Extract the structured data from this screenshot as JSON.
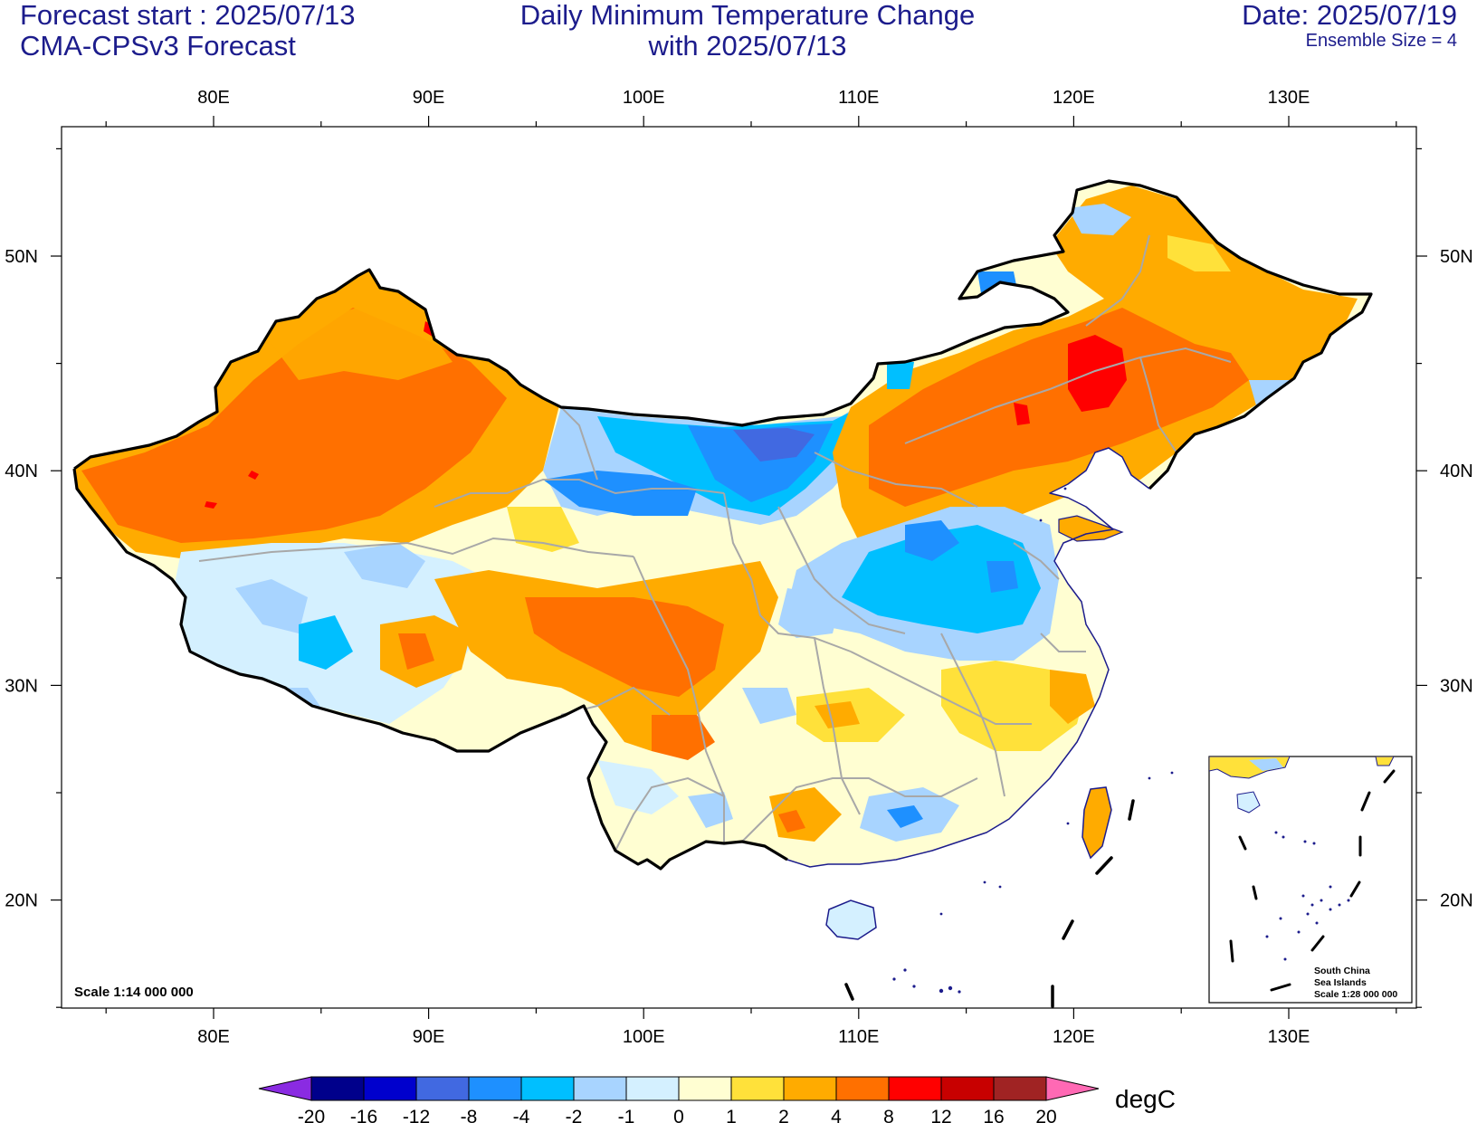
{
  "header": {
    "left_line1": "Forecast start : 2025/07/13",
    "left_line2": "CMA-CPSv3 Forecast",
    "center_line1": "Daily Minimum Temperature Change",
    "center_line2": "with 2025/07/13",
    "right_line1": "Date: 2025/07/19",
    "right_line2": "Ensemble Size = 4"
  },
  "map": {
    "lon_range": [
      73,
      136
    ],
    "lat_range": [
      15,
      56
    ],
    "lon_ticks": [
      "80E",
      "90E",
      "100E",
      "110E",
      "120E",
      "130E"
    ],
    "lat_ticks": [
      "50N",
      "40N",
      "30N",
      "20N"
    ],
    "scale_label": "Scale 1:14 000 000",
    "inset": {
      "line1": "South China",
      "line2": "Sea Islands",
      "line3": "Scale 1:28 000 000"
    }
  },
  "colorbar": {
    "labels": [
      "-20",
      "-16",
      "-12",
      "-8",
      "-4",
      "-2",
      "-1",
      "0",
      "1",
      "2",
      "4",
      "8",
      "12",
      "16",
      "20"
    ],
    "colors": [
      "#8a2be2",
      "#00008b",
      "#0000cd",
      "#4169e1",
      "#1e90ff",
      "#00bfff",
      "#a8d4ff",
      "#d4f0ff",
      "#fffed2",
      "#ffe13a",
      "#ffab00",
      "#ff7000",
      "#ff0000",
      "#c80000",
      "#a02323",
      "#ff69b4"
    ],
    "unit": "degC"
  },
  "colors": {
    "title": "#1c1c8c",
    "border": "#000000",
    "province": "#a8a8a8",
    "coast": "#1c1c8c"
  }
}
